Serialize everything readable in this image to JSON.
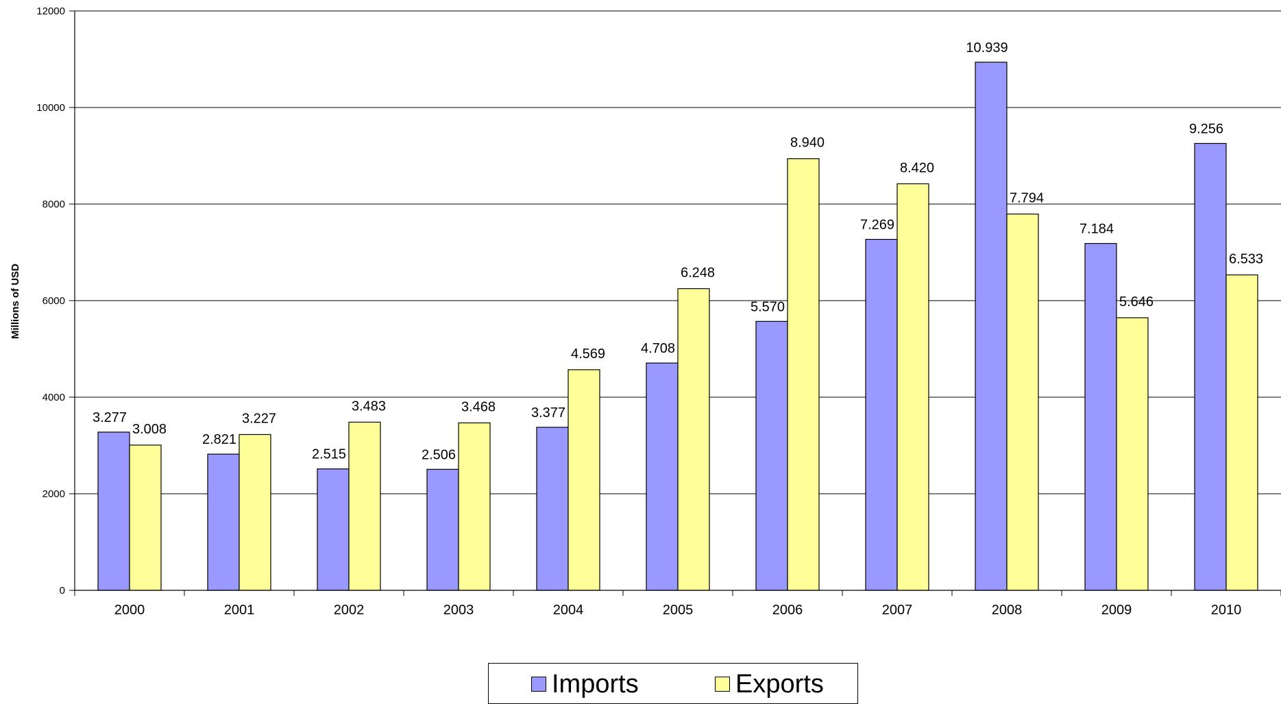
{
  "chart_data": {
    "type": "bar",
    "title": "",
    "xlabel": "",
    "ylabel": "Millions of USD",
    "ylim": [
      0,
      12000
    ],
    "yticks": [
      0,
      2000,
      4000,
      6000,
      8000,
      10000,
      12000
    ],
    "grid": true,
    "legend_position": "bottom",
    "categories": [
      "2000",
      "2001",
      "2002",
      "2003",
      "2004",
      "2005",
      "2006",
      "2007",
      "2008",
      "2009",
      "2010"
    ],
    "series": [
      {
        "name": "Imports",
        "color": "#9999FF",
        "values": [
          3277,
          2821,
          2515,
          2506,
          3377,
          4708,
          5570,
          7269,
          10939,
          7184,
          9256
        ],
        "labels": [
          "3.277",
          "2.821",
          "2.515",
          "2.506",
          "3.377",
          "4.708",
          "5.570",
          "7.269",
          "10.939",
          "7.184",
          "9.256"
        ]
      },
      {
        "name": "Exports",
        "color": "#FFFF99",
        "values": [
          3008,
          3227,
          3483,
          3468,
          4569,
          6248,
          8940,
          8420,
          7794,
          5646,
          6533
        ],
        "labels": [
          "3.008",
          "3.227",
          "3.483",
          "3.468",
          "4.569",
          "6.248",
          "8.940",
          "8.420",
          "7.794",
          "5.646",
          "6.533"
        ]
      }
    ]
  }
}
